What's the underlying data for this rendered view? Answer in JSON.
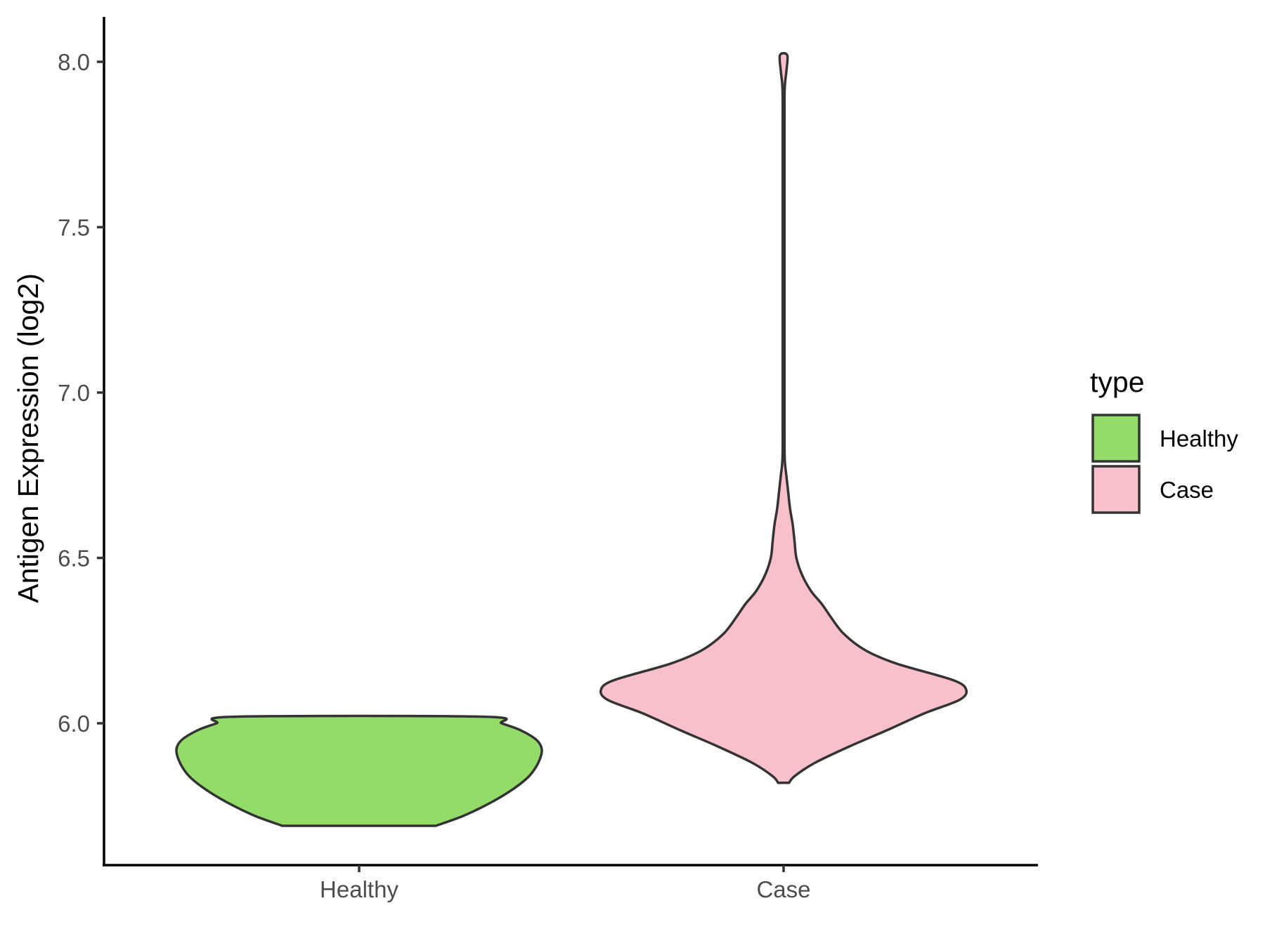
{
  "chart_data": {
    "type": "violin",
    "title": "",
    "xlabel": "",
    "ylabel": "Antigen Expression (log2)",
    "ylim": [
      5.58,
      8.15
    ],
    "yticks": [
      "6.0",
      "6.5",
      "7.0",
      "7.5",
      "8.0"
    ],
    "ytick_values": [
      6.0,
      6.5,
      7.0,
      7.5,
      8.0
    ],
    "categories": [
      "Healthy",
      "Case"
    ],
    "grid": false,
    "legend": {
      "title": "type",
      "position": "right",
      "items": [
        "Healthy",
        "Case"
      ]
    },
    "series": [
      {
        "name": "Healthy",
        "color": "#93DC69",
        "min": 5.69,
        "max": 6.02,
        "density_profile": [
          [
            5.69,
            0.42
          ],
          [
            5.72,
            0.57
          ],
          [
            5.76,
            0.72
          ],
          [
            5.8,
            0.84
          ],
          [
            5.84,
            0.93
          ],
          [
            5.88,
            0.98
          ],
          [
            5.92,
            1.0
          ],
          [
            5.95,
            0.97
          ],
          [
            5.98,
            0.88
          ],
          [
            6.0,
            0.78
          ],
          [
            6.02,
            0.68
          ]
        ]
      },
      {
        "name": "Case",
        "color": "#F7C0CB",
        "min": 5.82,
        "max": 8.02,
        "density_profile": [
          [
            5.82,
            0.03
          ],
          [
            5.84,
            0.06
          ],
          [
            5.88,
            0.17
          ],
          [
            5.93,
            0.36
          ],
          [
            5.98,
            0.57
          ],
          [
            6.03,
            0.77
          ],
          [
            6.07,
            0.96
          ],
          [
            6.1,
            1.0
          ],
          [
            6.13,
            0.93
          ],
          [
            6.18,
            0.62
          ],
          [
            6.22,
            0.45
          ],
          [
            6.27,
            0.33
          ],
          [
            6.32,
            0.26
          ],
          [
            6.36,
            0.21
          ],
          [
            6.4,
            0.15
          ],
          [
            6.45,
            0.1
          ],
          [
            6.5,
            0.07
          ],
          [
            6.55,
            0.06
          ],
          [
            6.6,
            0.05
          ],
          [
            6.65,
            0.035
          ],
          [
            6.7,
            0.025
          ],
          [
            6.75,
            0.015
          ],
          [
            6.8,
            0.006
          ],
          [
            6.9,
            0.005
          ],
          [
            7.2,
            0.005
          ],
          [
            7.5,
            0.005
          ],
          [
            7.8,
            0.005
          ],
          [
            7.92,
            0.006
          ],
          [
            7.97,
            0.015
          ],
          [
            8.02,
            0.02
          ]
        ]
      }
    ]
  }
}
